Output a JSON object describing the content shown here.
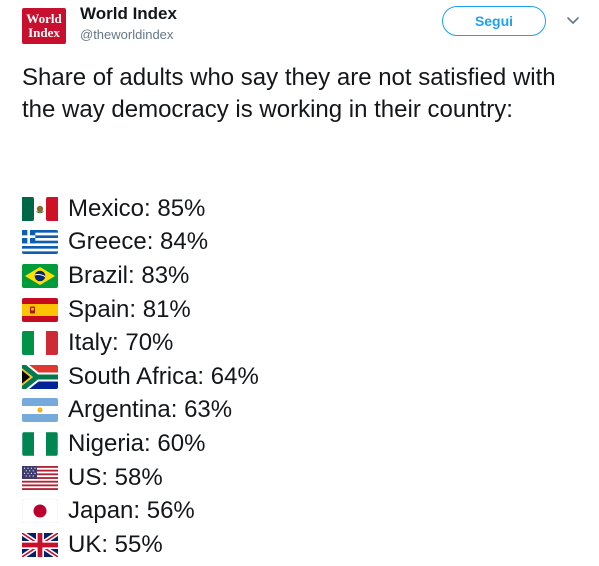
{
  "account": {
    "logo_text": [
      "World",
      "Index"
    ],
    "name": "World Index",
    "handle": "@theworldindex"
  },
  "follow_label": "Segui",
  "tweet": {
    "text": "Share of adults who say they are not satisfied with the way democracy is working in their country:"
  },
  "items": [
    {
      "flag": "mexico-flag-icon",
      "text": "Mexico: 85%"
    },
    {
      "flag": "greece-flag-icon",
      "text": "Greece: 84%"
    },
    {
      "flag": "brazil-flag-icon",
      "text": "Brazil: 83%"
    },
    {
      "flag": "spain-flag-icon",
      "text": "Spain: 81%"
    },
    {
      "flag": "italy-flag-icon",
      "text": "Italy: 70%"
    },
    {
      "flag": "south-africa-flag-icon",
      "text": "South Africa: 64%"
    },
    {
      "flag": "argentina-flag-icon",
      "text": "Argentina: 63%"
    },
    {
      "flag": "nigeria-flag-icon",
      "text": "Nigeria: 60%"
    },
    {
      "flag": "us-flag-icon",
      "text": "US: 58%"
    },
    {
      "flag": "japan-flag-icon",
      "text": "Japan: 56%"
    },
    {
      "flag": "uk-flag-icon",
      "text": "UK: 55%"
    }
  ],
  "colors": {
    "accent": "#1da1f2",
    "logo_red": "#c8102e",
    "muted": "#657786"
  }
}
